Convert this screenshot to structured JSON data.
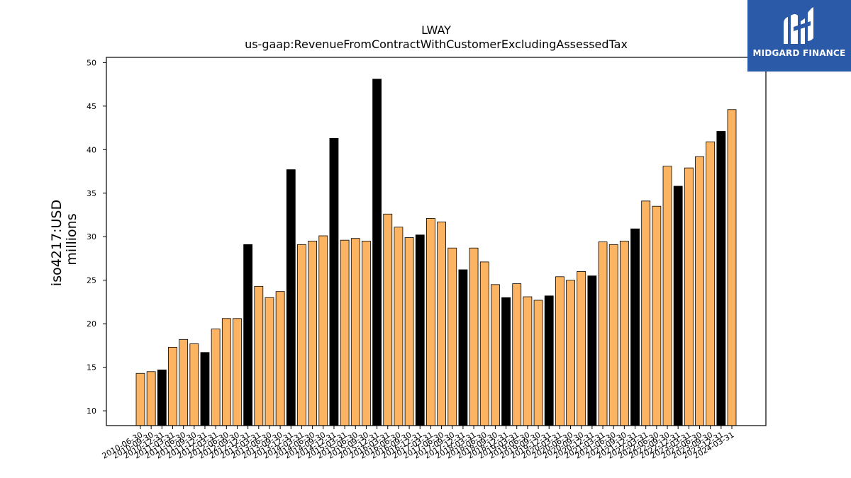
{
  "chart_data": {
    "type": "bar",
    "title": "LWAY",
    "subtitle": "us-gaap:RevenueFromContractWithCustomerExcludingAssessedTax",
    "ylabel": "iso4217:USD",
    "ylabel2": "millions",
    "xlabel": "",
    "ylim": [
      8.3,
      50.6
    ],
    "yticks": [
      10,
      15,
      20,
      25,
      30,
      35,
      40,
      45,
      50
    ],
    "grid": false,
    "colors": {
      "quarterly": "#fdb462",
      "annual": "#000000",
      "edge": "#000000"
    },
    "categories": [
      "2010-06-30",
      "2010-09-30",
      "2010-12-31",
      "2011-03-31",
      "2011-06-30",
      "2011-09-30",
      "2011-12-31",
      "2012-03-31",
      "2012-06-30",
      "2012-09-30",
      "2012-12-31",
      "2013-03-31",
      "2013-06-30",
      "2013-09-30",
      "2013-12-31",
      "2014-03-31",
      "2014-06-30",
      "2014-09-30",
      "2014-12-31",
      "2015-03-31",
      "2015-06-30",
      "2015-09-30",
      "2015-12-31",
      "2016-03-31",
      "2016-06-30",
      "2016-09-30",
      "2016-12-31",
      "2017-03-31",
      "2017-06-30",
      "2017-09-30",
      "2017-12-31",
      "2018-03-31",
      "2018-06-30",
      "2018-09-30",
      "2018-12-31",
      "2019-03-31",
      "2019-06-30",
      "2019-09-30",
      "2019-12-31",
      "2020-03-31",
      "2020-06-30",
      "2020-09-30",
      "2020-12-31",
      "2021-03-31",
      "2021-06-30",
      "2021-09-30",
      "2021-12-31",
      "2022-03-31",
      "2022-06-30",
      "2022-09-30",
      "2022-12-31",
      "2023-03-31",
      "2023-06-30",
      "2023-09-30",
      "2023-12-31",
      "2024-03-31"
    ],
    "values": [
      14.3,
      14.5,
      14.7,
      17.3,
      18.2,
      17.7,
      16.7,
      19.4,
      20.6,
      20.6,
      29.1,
      24.3,
      23.0,
      23.7,
      37.7,
      29.1,
      29.5,
      30.1,
      41.3,
      29.6,
      29.8,
      29.5,
      48.1,
      32.6,
      31.1,
      29.9,
      30.2,
      32.1,
      31.7,
      28.7,
      26.2,
      28.7,
      27.1,
      24.5,
      23.0,
      24.6,
      23.1,
      22.7,
      23.2,
      25.4,
      25.0,
      26.0,
      25.5,
      29.4,
      29.1,
      29.5,
      30.9,
      34.1,
      33.5,
      38.1,
      35.8,
      37.9,
      39.2,
      40.9,
      42.1,
      44.6
    ],
    "annual": [
      false,
      false,
      true,
      false,
      false,
      false,
      true,
      false,
      false,
      false,
      true,
      false,
      false,
      false,
      true,
      false,
      false,
      false,
      true,
      false,
      false,
      false,
      true,
      false,
      false,
      false,
      true,
      false,
      false,
      false,
      true,
      false,
      false,
      false,
      true,
      false,
      false,
      false,
      true,
      false,
      false,
      false,
      true,
      false,
      false,
      false,
      true,
      false,
      false,
      false,
      true,
      false,
      false,
      false,
      true,
      false
    ]
  },
  "logo": {
    "text": "MIDGARD FINANCE",
    "icon": "midgard-logo-icon"
  }
}
